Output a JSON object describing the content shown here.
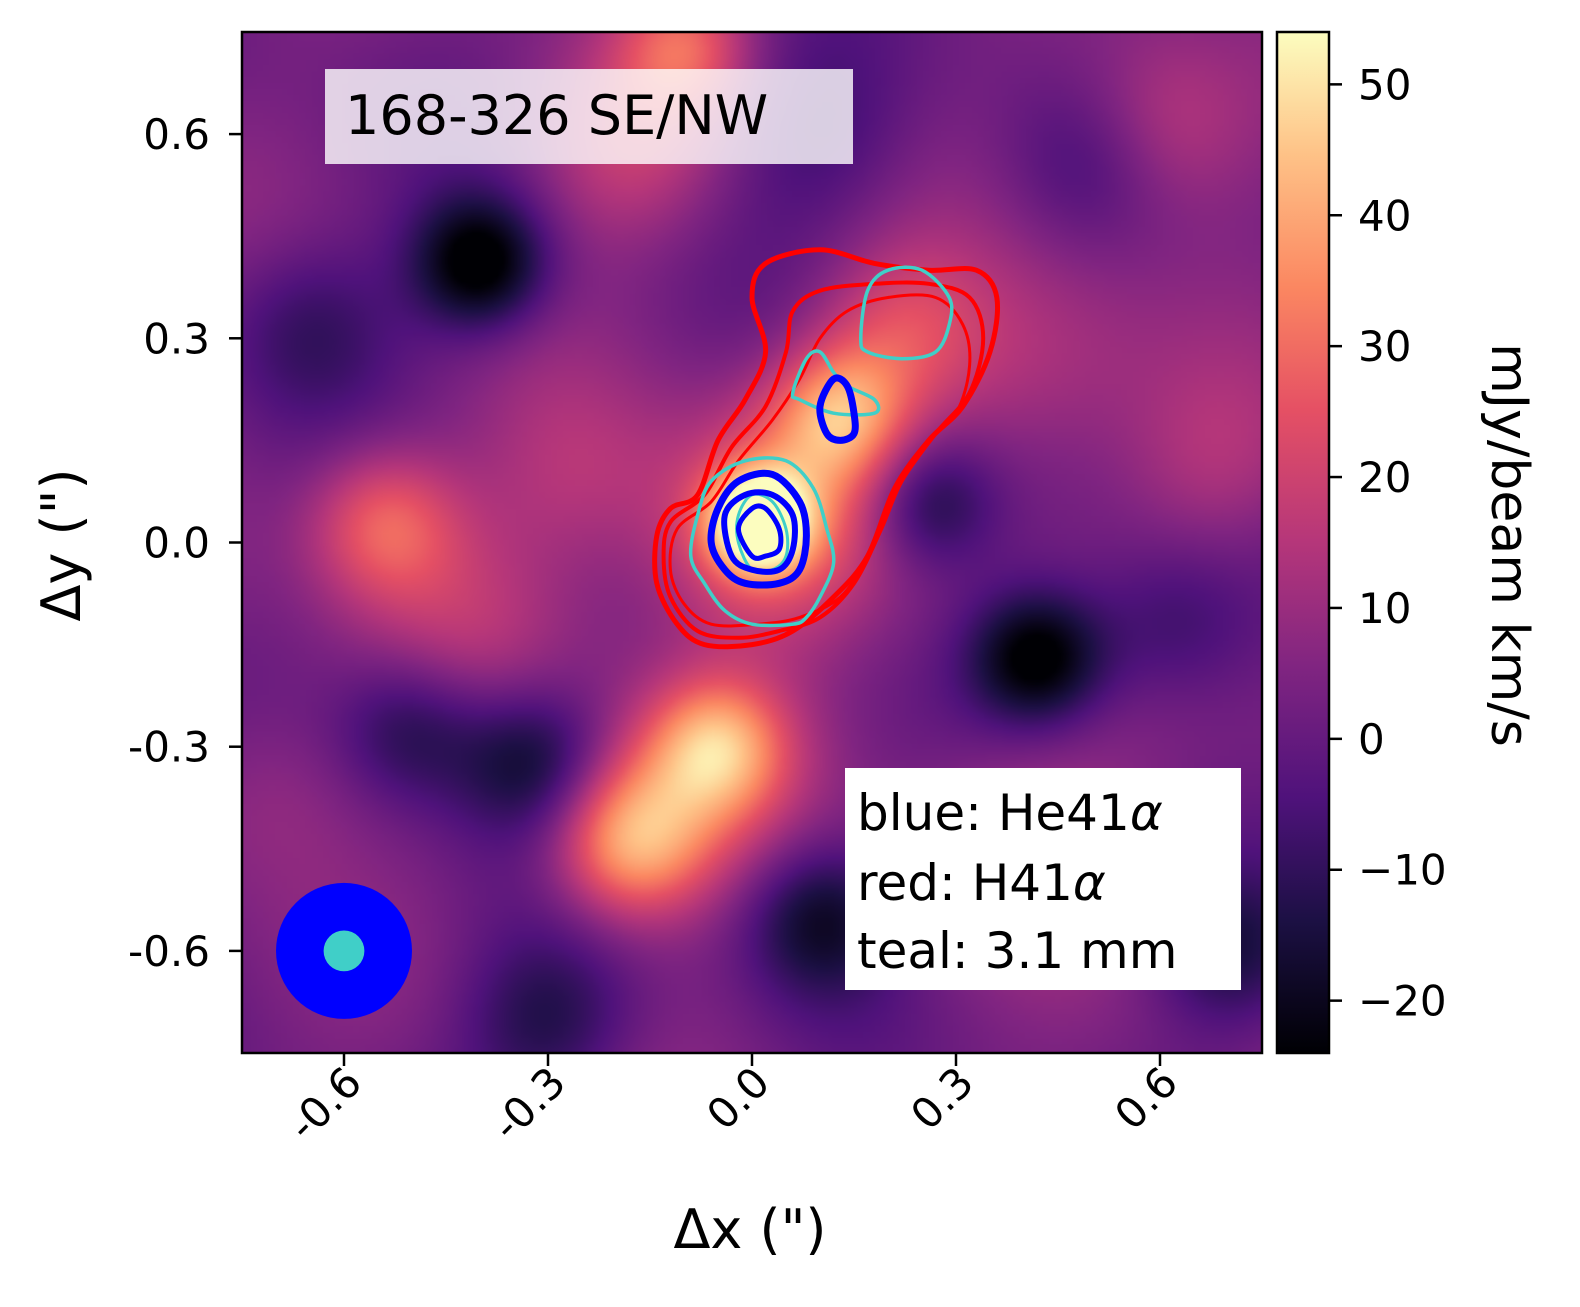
{
  "chart_data": {
    "type": "heatmap",
    "title": "168-326 SE/NW",
    "xlabel": "Δx (\")",
    "ylabel": "Δy (\")",
    "xlim": [
      -0.75,
      0.75
    ],
    "ylim": [
      -0.75,
      0.75
    ],
    "xticks": [
      -0.6,
      -0.3,
      0.0,
      0.3,
      0.6
    ],
    "yticks": [
      -0.6,
      -0.3,
      0.0,
      0.3,
      0.6
    ],
    "xtick_labels": [
      "-0.6",
      "-0.3",
      "0.0",
      "0.3",
      "0.6"
    ],
    "ytick_labels": [
      "-0.6",
      "-0.3",
      "0.0",
      "0.3",
      "0.6"
    ],
    "colorbar": {
      "label": "mJy/beam km/s",
      "range": [
        -24,
        54
      ],
      "ticks": [
        -20,
        -10,
        0,
        10,
        20,
        30,
        40,
        50
      ],
      "tick_labels": [
        "−20",
        "−10",
        "0",
        "10",
        "20",
        "30",
        "40",
        "50"
      ],
      "colormap": "magma"
    },
    "legend": {
      "placement": "lower-right",
      "entries": [
        {
          "prefix": "blue: ",
          "name": "He41",
          "suffix": "α",
          "color": "#0000ff"
        },
        {
          "prefix": "red: ",
          "name": "H41",
          "suffix": "α",
          "color": "#ff0000"
        },
        {
          "prefix": "teal: ",
          "name": "3.1 mm",
          "suffix": "",
          "color": "#40cfc8"
        }
      ]
    },
    "image_blobs": [
      {
        "x": 0.01,
        "y": 0.03,
        "amp": 50,
        "sigma": 0.05
      },
      {
        "x": 0.0,
        "y": 0.0,
        "amp": 22,
        "sigma": 0.12
      },
      {
        "x": 0.13,
        "y": 0.19,
        "amp": 28,
        "sigma": 0.07
      },
      {
        "x": 0.22,
        "y": 0.31,
        "amp": 18,
        "sigma": 0.09
      },
      {
        "x": 0.08,
        "y": 0.1,
        "amp": 10,
        "sigma": 0.1
      },
      {
        "x": -0.05,
        "y": -0.3,
        "amp": 30,
        "sigma": 0.07
      },
      {
        "x": -0.18,
        "y": -0.44,
        "amp": 34,
        "sigma": 0.08
      },
      {
        "x": -0.1,
        "y": -0.36,
        "amp": 14,
        "sigma": 0.12
      },
      {
        "x": -0.54,
        "y": 0.03,
        "amp": 25,
        "sigma": 0.08
      },
      {
        "x": -0.42,
        "y": -0.12,
        "amp": 10,
        "sigma": 0.12
      },
      {
        "x": 0.6,
        "y": 0.61,
        "amp": 18,
        "sigma": 0.1
      },
      {
        "x": -0.18,
        "y": 0.57,
        "amp": 14,
        "sigma": 0.1
      },
      {
        "x": -0.1,
        "y": 0.73,
        "amp": 22,
        "sigma": 0.07
      },
      {
        "x": 0.42,
        "y": 0.25,
        "amp": 12,
        "sigma": 0.12
      },
      {
        "x": 0.4,
        "y": -0.42,
        "amp": 10,
        "sigma": 0.12
      },
      {
        "x": 0.68,
        "y": 0.12,
        "amp": 10,
        "sigma": 0.1
      },
      {
        "x": -0.7,
        "y": -0.36,
        "amp": 8,
        "sigma": 0.1
      },
      {
        "x": -0.26,
        "y": 0.1,
        "amp": 10,
        "sigma": 0.1
      },
      {
        "x": -0.4,
        "y": 0.41,
        "amp": -32,
        "sigma": 0.07
      },
      {
        "x": 0.42,
        "y": -0.17,
        "amp": -30,
        "sigma": 0.07
      },
      {
        "x": 0.26,
        "y": 0.06,
        "amp": -20,
        "sigma": 0.07
      },
      {
        "x": -0.32,
        "y": -0.32,
        "amp": -22,
        "sigma": 0.08
      },
      {
        "x": -0.5,
        "y": -0.27,
        "amp": -18,
        "sigma": 0.08
      },
      {
        "x": 0.1,
        "y": -0.55,
        "amp": -22,
        "sigma": 0.08
      },
      {
        "x": -0.3,
        "y": -0.7,
        "amp": -16,
        "sigma": 0.09
      },
      {
        "x": 0.62,
        "y": -0.12,
        "amp": -14,
        "sigma": 0.09
      },
      {
        "x": 0.7,
        "y": -0.6,
        "amp": -16,
        "sigma": 0.08
      },
      {
        "x": 0.5,
        "y": 0.56,
        "amp": -12,
        "sigma": 0.09
      },
      {
        "x": 0.1,
        "y": 0.6,
        "amp": -10,
        "sigma": 0.1
      },
      {
        "x": -0.65,
        "y": 0.32,
        "amp": -12,
        "sigma": 0.09
      }
    ],
    "contours": {
      "red": [
        [
          [
            -0.08,
            0.07
          ],
          [
            -0.05,
            0.15
          ],
          [
            -0.01,
            0.21
          ],
          [
            0.02,
            0.28
          ],
          [
            0.0,
            0.36
          ],
          [
            0.02,
            0.41
          ],
          [
            0.1,
            0.43
          ],
          [
            0.18,
            0.41
          ],
          [
            0.26,
            0.4
          ],
          [
            0.33,
            0.4
          ],
          [
            0.36,
            0.36
          ],
          [
            0.35,
            0.28
          ],
          [
            0.31,
            0.2
          ],
          [
            0.26,
            0.15
          ],
          [
            0.21,
            0.08
          ],
          [
            0.17,
            -0.02
          ],
          [
            0.12,
            -0.08
          ],
          [
            0.06,
            -0.13
          ],
          [
            0.0,
            -0.15
          ],
          [
            -0.07,
            -0.15
          ],
          [
            -0.11,
            -0.12
          ],
          [
            -0.14,
            -0.06
          ],
          [
            -0.14,
            0.01
          ],
          [
            -0.12,
            0.05
          ]
        ],
        [
          [
            -0.07,
            0.07
          ],
          [
            -0.03,
            0.14
          ],
          [
            0.02,
            0.2
          ],
          [
            0.05,
            0.28
          ],
          [
            0.06,
            0.34
          ],
          [
            0.1,
            0.37
          ],
          [
            0.18,
            0.38
          ],
          [
            0.26,
            0.38
          ],
          [
            0.32,
            0.36
          ],
          [
            0.34,
            0.3
          ],
          [
            0.32,
            0.22
          ],
          [
            0.27,
            0.16
          ],
          [
            0.22,
            0.09
          ],
          [
            0.19,
            0.02
          ],
          [
            0.15,
            -0.06
          ],
          [
            0.1,
            -0.11
          ],
          [
            0.04,
            -0.13
          ],
          [
            -0.02,
            -0.14
          ],
          [
            -0.08,
            -0.13
          ],
          [
            -0.12,
            -0.08
          ],
          [
            -0.13,
            -0.02
          ],
          [
            -0.12,
            0.03
          ]
        ],
        [
          [
            -0.06,
            0.06
          ],
          [
            -0.02,
            0.12
          ],
          [
            0.03,
            0.18
          ],
          [
            0.07,
            0.24
          ],
          [
            0.1,
            0.3
          ],
          [
            0.14,
            0.34
          ],
          [
            0.2,
            0.36
          ],
          [
            0.27,
            0.36
          ],
          [
            0.31,
            0.32
          ],
          [
            0.32,
            0.26
          ],
          [
            0.3,
            0.19
          ],
          [
            0.25,
            0.14
          ],
          [
            0.21,
            0.07
          ],
          [
            0.17,
            -0.02
          ],
          [
            0.13,
            -0.08
          ],
          [
            0.07,
            -0.11
          ],
          [
            0.01,
            -0.12
          ],
          [
            -0.06,
            -0.12
          ],
          [
            -0.1,
            -0.09
          ],
          [
            -0.12,
            -0.04
          ],
          [
            -0.11,
            0.02
          ]
        ]
      ],
      "teal": [
        [
          [
            -0.08,
            0.04
          ],
          [
            -0.06,
            0.09
          ],
          [
            -0.01,
            0.12
          ],
          [
            0.05,
            0.12
          ],
          [
            0.09,
            0.08
          ],
          [
            0.11,
            0.02
          ],
          [
            0.12,
            -0.03
          ],
          [
            0.1,
            -0.08
          ],
          [
            0.08,
            -0.11
          ],
          [
            0.06,
            -0.12
          ],
          [
            0.0,
            -0.12
          ],
          [
            -0.04,
            -0.1
          ],
          [
            -0.07,
            -0.06
          ],
          [
            -0.09,
            -0.02
          ]
        ],
        [
          [
            0.06,
            0.22
          ],
          [
            0.08,
            0.27
          ],
          [
            0.1,
            0.28
          ],
          [
            0.12,
            0.25
          ],
          [
            0.14,
            0.23
          ],
          [
            0.18,
            0.21
          ],
          [
            0.18,
            0.19
          ],
          [
            0.12,
            0.19
          ],
          [
            0.07,
            0.21
          ]
        ],
        [
          [
            0.16,
            0.3
          ],
          [
            0.17,
            0.37
          ],
          [
            0.2,
            0.4
          ],
          [
            0.25,
            0.4
          ],
          [
            0.29,
            0.36
          ],
          [
            0.29,
            0.32
          ],
          [
            0.27,
            0.28
          ],
          [
            0.22,
            0.27
          ],
          [
            0.17,
            0.28
          ]
        ],
        [
          [
            -0.02,
            0.04
          ],
          [
            0.0,
            0.07
          ],
          [
            0.03,
            0.06
          ],
          [
            0.05,
            0.02
          ],
          [
            0.05,
            -0.02
          ],
          [
            0.03,
            -0.04
          ],
          [
            0.0,
            -0.04
          ],
          [
            -0.02,
            0.0
          ]
        ]
      ],
      "blue": [
        [
          [
            -0.05,
            0.05
          ],
          [
            -0.02,
            0.09
          ],
          [
            0.03,
            0.1
          ],
          [
            0.07,
            0.06
          ],
          [
            0.08,
            0.01
          ],
          [
            0.07,
            -0.04
          ],
          [
            0.04,
            -0.06
          ],
          [
            -0.01,
            -0.06
          ],
          [
            -0.04,
            -0.04
          ],
          [
            -0.06,
            0.0
          ]
        ],
        [
          [
            -0.04,
            0.04
          ],
          [
            -0.01,
            0.07
          ],
          [
            0.03,
            0.07
          ],
          [
            0.06,
            0.04
          ],
          [
            0.06,
            -0.01
          ],
          [
            0.04,
            -0.04
          ],
          [
            0.0,
            -0.04
          ],
          [
            -0.03,
            -0.02
          ]
        ],
        [
          [
            -0.02,
            0.02
          ],
          [
            0.0,
            0.05
          ],
          [
            0.02,
            0.05
          ],
          [
            0.04,
            0.02
          ],
          [
            0.04,
            -0.01
          ],
          [
            0.02,
            -0.02
          ],
          [
            0.0,
            -0.02
          ]
        ],
        [
          [
            0.1,
            0.2
          ],
          [
            0.12,
            0.24
          ],
          [
            0.14,
            0.23
          ],
          [
            0.15,
            0.19
          ],
          [
            0.15,
            0.16
          ],
          [
            0.13,
            0.15
          ],
          [
            0.11,
            0.16
          ]
        ]
      ]
    },
    "beams": [
      {
        "x": -0.6,
        "y": -0.6,
        "radius": 0.1,
        "color": "#0000ff"
      },
      {
        "x": -0.6,
        "y": -0.6,
        "radius": 0.03,
        "color": "#40cfc8"
      }
    ]
  }
}
